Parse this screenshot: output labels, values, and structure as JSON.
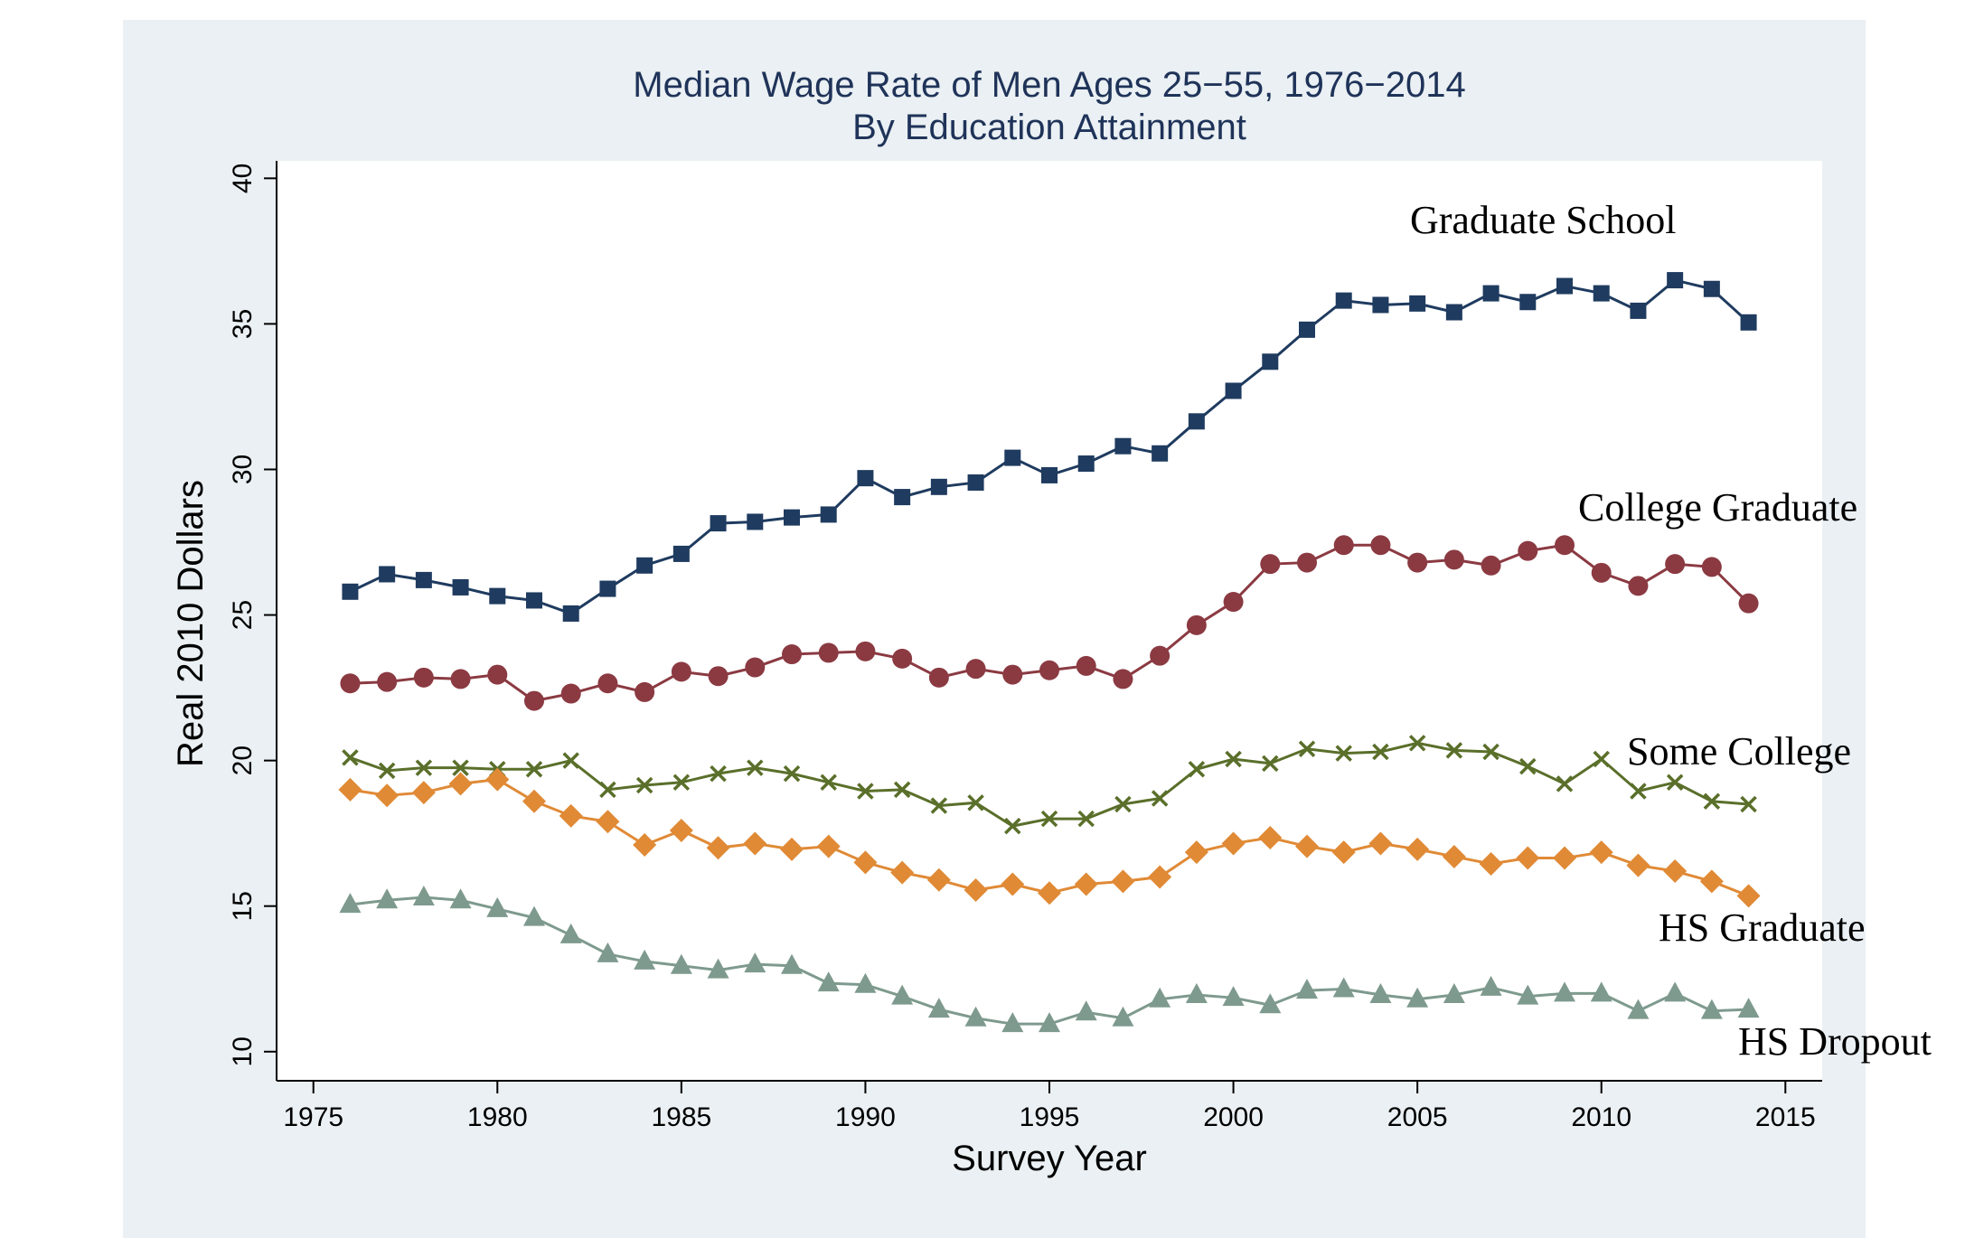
{
  "chart_data": {
    "type": "line",
    "title": "Median Wage Rate of Men Ages 25−55, 1976−2014",
    "subtitle": "By Education Attainment",
    "xlabel": "Survey Year",
    "ylabel": "Real 2010 Dollars",
    "xlim": [
      1974,
      2016
    ],
    "ylim": [
      9,
      40.6
    ],
    "xticks": [
      1975,
      1980,
      1985,
      1990,
      1995,
      2000,
      2005,
      2010,
      2015
    ],
    "yticks": [
      10,
      15,
      20,
      25,
      30,
      35,
      40
    ],
    "grid": false,
    "legend": "none",
    "x": [
      1976,
      1977,
      1978,
      1979,
      1980,
      1981,
      1982,
      1983,
      1984,
      1985,
      1986,
      1987,
      1988,
      1989,
      1990,
      1991,
      1992,
      1993,
      1994,
      1995,
      1996,
      1997,
      1998,
      1999,
      2000,
      2001,
      2002,
      2003,
      2004,
      2005,
      2006,
      2007,
      2008,
      2009,
      2010,
      2011,
      2012,
      2013,
      2014
    ],
    "series": [
      {
        "name": "Graduate School",
        "color": "#1f3b5f",
        "marker": "square",
        "values": [
          25.8,
          26.4,
          26.2,
          25.95,
          25.65,
          25.5,
          25.05,
          25.9,
          26.7,
          27.1,
          28.15,
          28.2,
          28.35,
          28.45,
          29.7,
          29.05,
          29.4,
          29.55,
          30.4,
          29.8,
          30.2,
          30.8,
          30.55,
          31.65,
          32.7,
          33.7,
          34.8,
          35.8,
          35.65,
          35.7,
          35.4,
          36.05,
          35.75,
          36.3,
          36.05,
          35.45,
          36.5,
          36.2,
          35.05
        ]
      },
      {
        "name": "College Graduate",
        "color": "#8b3a42",
        "marker": "circle",
        "values": [
          22.65,
          22.7,
          22.85,
          22.8,
          22.95,
          22.05,
          22.3,
          22.65,
          22.35,
          23.05,
          22.9,
          23.2,
          23.65,
          23.7,
          23.75,
          23.5,
          22.85,
          23.15,
          22.95,
          23.1,
          23.25,
          22.8,
          23.6,
          24.65,
          25.45,
          26.75,
          26.8,
          27.4,
          27.4,
          26.8,
          26.9,
          26.7,
          27.2,
          27.4,
          26.45,
          26.0,
          26.75,
          26.65,
          25.4
        ]
      },
      {
        "name": "Some College",
        "color": "#5a6f2a",
        "marker": "x",
        "values": [
          20.1,
          19.65,
          19.75,
          19.75,
          19.7,
          19.7,
          20.0,
          19.0,
          19.15,
          19.25,
          19.55,
          19.75,
          19.55,
          19.25,
          18.95,
          19.0,
          18.45,
          18.55,
          17.75,
          18.0,
          18.0,
          18.5,
          18.7,
          19.7,
          20.05,
          19.9,
          20.4,
          20.25,
          20.3,
          20.6,
          20.35,
          20.3,
          19.8,
          19.2,
          20.05,
          18.95,
          19.25,
          18.6,
          18.5
        ]
      },
      {
        "name": "HS Graduate",
        "color": "#e08a36",
        "marker": "diamond",
        "values": [
          19.0,
          18.8,
          18.9,
          19.2,
          19.35,
          18.6,
          18.1,
          17.9,
          17.1,
          17.6,
          17.0,
          17.15,
          16.95,
          17.05,
          16.5,
          16.15,
          15.9,
          15.55,
          15.75,
          15.45,
          15.75,
          15.85,
          16.0,
          16.85,
          17.15,
          17.35,
          17.05,
          16.85,
          17.15,
          16.95,
          16.7,
          16.45,
          16.65,
          16.65,
          16.85,
          16.4,
          16.2,
          15.85,
          15.35
        ]
      },
      {
        "name": "HS Dropout",
        "color": "#7e9a8e",
        "marker": "triangle",
        "values": [
          15.05,
          15.2,
          15.3,
          15.2,
          14.9,
          14.6,
          14.0,
          13.35,
          13.1,
          12.95,
          12.8,
          13.0,
          12.95,
          12.35,
          12.3,
          11.9,
          11.45,
          11.15,
          10.95,
          10.95,
          11.35,
          11.15,
          11.8,
          11.95,
          11.85,
          11.6,
          12.1,
          12.15,
          11.95,
          11.8,
          11.95,
          12.2,
          11.9,
          12.0,
          12.0,
          11.4,
          12.0,
          11.4,
          11.45
        ]
      }
    ]
  }
}
